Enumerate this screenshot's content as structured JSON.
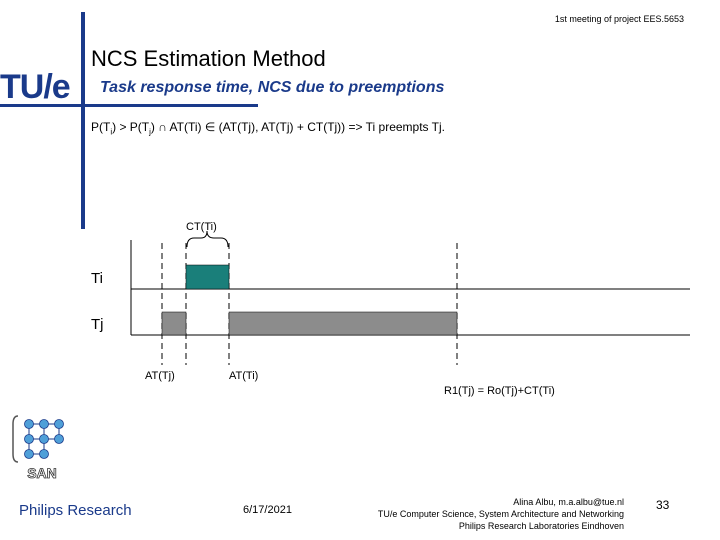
{
  "header": {
    "meeting": "1st meeting of project EES.5653",
    "logo_text": "TU/e"
  },
  "slide": {
    "title": "NCS Estimation Method",
    "subtitle": "Task response time, NCS due to preemptions",
    "condition": {
      "p1": "P(T",
      "s1": "i",
      "p2": ") > P(T",
      "s2": "j",
      "p3": ") ∩ AT(Ti) ∈ (AT(Tj), AT(Tj) + CT(Tj)) => Ti preempts Tj."
    }
  },
  "diagram": {
    "ct_label": "CT(Ti)",
    "ti_label": "Ti",
    "tj_label": "Tj",
    "at_tj_label": "AT(Tj)",
    "at_ti_label": "AT(Ti)",
    "r1_label": "R1(Tj) = Ro(Tj)+CT(Ti)",
    "ti_color": "#1a7f7a",
    "tj_color": "#8c8c8c"
  },
  "footer": {
    "san_text": "SAN",
    "philips": "Philips Research",
    "date": "6/17/2021",
    "author_line1": "Alina Albu, m.a.albu@tue.nl",
    "author_line2": "TU/e Computer Science, System Architecture and Networking",
    "author_line3": "Philips Research Laboratories Eindhoven",
    "page_number": "33"
  }
}
